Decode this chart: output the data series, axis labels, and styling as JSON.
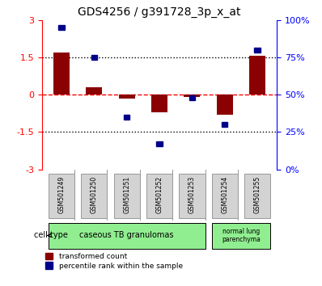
{
  "title": "GDS4256 / g391728_3p_x_at",
  "samples": [
    "GSM501249",
    "GSM501250",
    "GSM501251",
    "GSM501252",
    "GSM501253",
    "GSM501254",
    "GSM501255"
  ],
  "red_bars": [
    1.7,
    0.3,
    -0.15,
    -0.7,
    -0.1,
    -0.8,
    1.55
  ],
  "blue_dots_pct": [
    95,
    75,
    35,
    17,
    48,
    30,
    80
  ],
  "ylim_left": [
    -3,
    3
  ],
  "ylim_right": [
    0,
    100
  ],
  "yticks_left": [
    -3,
    -1.5,
    0,
    1.5,
    3
  ],
  "yticks_right": [
    0,
    25,
    50,
    75,
    100
  ],
  "ytick_labels_right": [
    "0%",
    "25%",
    "50%",
    "75%",
    "100%"
  ],
  "hlines": [
    1.5,
    0,
    -1.5
  ],
  "hline_colors": [
    "black",
    "red",
    "black"
  ],
  "hline_styles": [
    "dotted",
    "dashed",
    "dotted"
  ],
  "cell_type_groups": [
    {
      "label": "caseous TB granulomas",
      "samples": [
        0,
        1,
        2,
        3,
        4
      ],
      "color": "#90EE90"
    },
    {
      "label": "normal lung\nparenchyma",
      "samples": [
        5,
        6
      ],
      "color": "#90EE90"
    }
  ],
  "cell_type_label": "cell type",
  "legend_red": "transformed count",
  "legend_blue": "percentile rank within the sample",
  "bar_color": "#8B0000",
  "dot_color": "#00008B",
  "bar_width": 0.5,
  "background_color": "#ffffff",
  "plot_bg": "#ffffff",
  "tick_label_box_color": "#d3d3d3",
  "tick_label_box_edge": "#999999"
}
